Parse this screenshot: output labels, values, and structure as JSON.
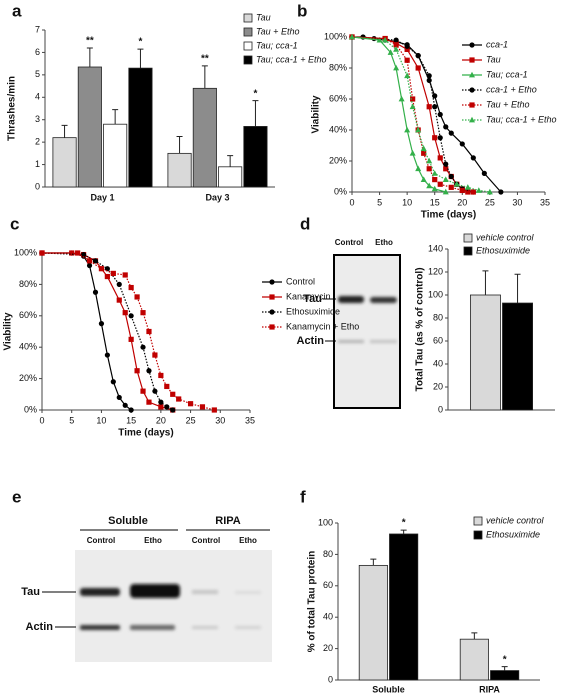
{
  "chart_data": [
    {
      "type": "bar",
      "label": "a",
      "ylabel": "Thrashes/min",
      "categories": [
        "Day 1",
        "Day 3"
      ],
      "ylim": [
        0,
        7
      ],
      "yticks": [
        0,
        1,
        2,
        3,
        4,
        5,
        6,
        7
      ],
      "series": [
        {
          "name": "Tau",
          "color": "#d9d9d9",
          "values": [
            2.2,
            1.5
          ],
          "errors": [
            0.55,
            0.75
          ]
        },
        {
          "name": "Tau + Etho",
          "color": "#8c8c8c",
          "values": [
            5.35,
            4.4
          ],
          "errors": [
            0.85,
            1.0
          ],
          "sig_labels": [
            "**",
            "**"
          ]
        },
        {
          "name": "Tau; cca-1",
          "color": "#ffffff",
          "values": [
            2.8,
            0.9
          ],
          "errors": [
            0.65,
            0.5
          ]
        },
        {
          "name": "Tau; cca-1 + Etho",
          "color": "#000000",
          "values": [
            5.3,
            2.7
          ],
          "errors": [
            0.85,
            1.15
          ],
          "sig_labels": [
            "*",
            "*"
          ]
        }
      ]
    },
    {
      "type": "line",
      "label": "b",
      "ylabel": "Viability",
      "xlabel": "Time (days)",
      "xlim": [
        0,
        35
      ],
      "xticks": [
        0,
        5,
        10,
        15,
        20,
        25,
        30,
        35
      ],
      "ylim": [
        0,
        100
      ],
      "yticks": [
        {
          "value": 0,
          "label": "0%"
        },
        {
          "value": 20,
          "label": "20%"
        },
        {
          "value": 40,
          "label": "40%"
        },
        {
          "value": 60,
          "label": "60%"
        },
        {
          "value": 80,
          "label": "80%"
        },
        {
          "value": 100,
          "label": "100%"
        }
      ],
      "series": [
        {
          "name": "cca-1",
          "color": "#000000",
          "dash": false,
          "marker": "circle",
          "x": [
            0,
            2,
            4,
            6,
            8,
            10,
            12,
            14,
            15,
            16,
            17,
            18,
            20,
            22,
            24,
            27
          ],
          "values": [
            100,
            100,
            99,
            98,
            97,
            95,
            88,
            72,
            62,
            50,
            42,
            38,
            31,
            22,
            12,
            0
          ]
        },
        {
          "name": "Tau",
          "color": "#c00000",
          "dash": false,
          "marker": "square",
          "x": [
            0,
            6,
            8,
            10,
            12,
            14,
            15,
            16,
            17,
            18,
            19,
            20,
            21
          ],
          "values": [
            100,
            99,
            96,
            92,
            80,
            55,
            35,
            22,
            15,
            10,
            5,
            2,
            0
          ]
        },
        {
          "name": "Tau; cca-1",
          "color": "#33b04a",
          "dash": false,
          "marker": "triangle",
          "x": [
            0,
            5,
            7,
            8,
            9,
            10,
            11,
            12,
            13,
            14,
            15,
            17
          ],
          "values": [
            100,
            98,
            90,
            80,
            60,
            40,
            25,
            15,
            8,
            4,
            2,
            0
          ]
        },
        {
          "name": "cca-1 + Etho",
          "color": "#000000",
          "dash": true,
          "marker": "circle",
          "x": [
            0,
            8,
            10,
            12,
            14,
            15,
            16,
            17,
            18,
            19,
            20,
            22
          ],
          "values": [
            100,
            98,
            94,
            88,
            75,
            55,
            35,
            18,
            10,
            5,
            2,
            0
          ]
        },
        {
          "name": "Tau + Etho",
          "color": "#c00000",
          "dash": true,
          "marker": "square",
          "x": [
            0,
            6,
            8,
            10,
            11,
            12,
            13,
            14,
            15,
            16,
            18,
            20,
            22
          ],
          "values": [
            100,
            99,
            95,
            85,
            60,
            40,
            25,
            15,
            8,
            5,
            3,
            1,
            0
          ]
        },
        {
          "name": "Tau; cca-1 + Etho",
          "color": "#33b04a",
          "dash": true,
          "marker": "triangle",
          "x": [
            0,
            6,
            8,
            10,
            11,
            12,
            13,
            14,
            15,
            17,
            19,
            21,
            23,
            25
          ],
          "values": [
            100,
            98,
            92,
            75,
            55,
            40,
            28,
            20,
            12,
            8,
            5,
            3,
            1,
            0
          ]
        }
      ]
    },
    {
      "type": "line",
      "label": "c",
      "ylabel": "Viability",
      "xlabel": "Time (days)",
      "xlim": [
        0,
        35
      ],
      "xticks": [
        0,
        5,
        10,
        15,
        20,
        25,
        30,
        35
      ],
      "ylim": [
        0,
        100
      ],
      "yticks": [
        {
          "value": 0,
          "label": "0%"
        },
        {
          "value": 20,
          "label": "20%"
        },
        {
          "value": 40,
          "label": "40%"
        },
        {
          "value": 60,
          "label": "60%"
        },
        {
          "value": 80,
          "label": "80%"
        },
        {
          "value": 100,
          "label": "100%"
        }
      ],
      "series": [
        {
          "name": "Control",
          "color": "#000000",
          "dash": false,
          "marker": "circle",
          "x": [
            0,
            5,
            7,
            8,
            9,
            10,
            11,
            12,
            13,
            14,
            15
          ],
          "values": [
            100,
            100,
            98,
            92,
            75,
            55,
            35,
            18,
            8,
            3,
            0
          ]
        },
        {
          "name": "Kanamycin",
          "color": "#c00000",
          "dash": false,
          "marker": "square",
          "x": [
            0,
            5,
            7,
            9,
            11,
            13,
            14,
            15,
            16,
            17,
            18,
            20,
            22
          ],
          "values": [
            100,
            100,
            99,
            95,
            85,
            70,
            62,
            45,
            25,
            12,
            5,
            2,
            0
          ]
        },
        {
          "name": "Ethosuximide",
          "color": "#000000",
          "dash": true,
          "marker": "circle",
          "x": [
            0,
            7,
            9,
            11,
            13,
            15,
            17,
            18,
            19,
            20,
            21,
            22
          ],
          "values": [
            100,
            99,
            95,
            90,
            80,
            60,
            40,
            25,
            12,
            5,
            2,
            0
          ]
        },
        {
          "name": "Kanamycin + Etho",
          "color": "#c00000",
          "dash": true,
          "marker": "square",
          "x": [
            0,
            6,
            8,
            10,
            12,
            14,
            15,
            16,
            17,
            18,
            19,
            20,
            21,
            22,
            23,
            25,
            27,
            29
          ],
          "values": [
            100,
            100,
            95,
            90,
            87,
            86,
            78,
            72,
            62,
            50,
            35,
            22,
            15,
            10,
            7,
            4,
            2,
            0
          ]
        }
      ]
    },
    {
      "type": "bar",
      "label": "d",
      "ylabel": "Total Tau (as % of control)",
      "categories": [
        null
      ],
      "ylim": [
        0,
        140
      ],
      "yticks": [
        0,
        20,
        40,
        60,
        80,
        100,
        120,
        140
      ],
      "series": [
        {
          "name": "vehicle control",
          "color": "#d9d9d9",
          "values": [
            100
          ],
          "errors": [
            21
          ]
        },
        {
          "name": "Ethosuximide",
          "color": "#000000",
          "values": [
            93
          ],
          "errors": [
            25
          ]
        }
      ]
    },
    {
      "type": "bar",
      "label": "f",
      "ylabel": "% of total Tau protein",
      "categories": [
        "Soluble",
        "RIPA"
      ],
      "ylim": [
        0,
        100
      ],
      "yticks": [
        0,
        20,
        40,
        60,
        80,
        100
      ],
      "series": [
        {
          "name": "vehicle control",
          "color": "#d9d9d9",
          "values": [
            73,
            26
          ],
          "errors": [
            4,
            4
          ]
        },
        {
          "name": "Ethosuximide",
          "color": "#000000",
          "values": [
            93,
            6
          ],
          "errors": [
            2.5,
            2.5
          ],
          "sig_labels": [
            "*",
            "*"
          ]
        }
      ]
    }
  ],
  "blot_d": {
    "lanes": [
      "Control",
      "Etho"
    ],
    "bands": [
      "Tau",
      "Actin"
    ]
  },
  "blot_e": {
    "label": "e",
    "groups": [
      "Soluble",
      "RIPA"
    ],
    "lanes": [
      "Control",
      "Etho",
      "Control",
      "Etho"
    ],
    "bands": [
      "Tau",
      "Actin"
    ]
  }
}
